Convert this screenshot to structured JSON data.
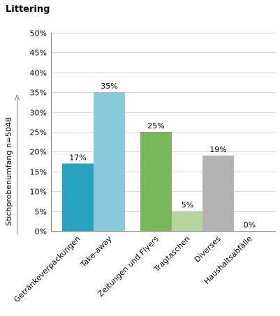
{
  "chart_data": {
    "type": "bar",
    "title": "Littering",
    "xlabel": "",
    "ylabel": "Stichprobenumfang n=5048",
    "ylim": [
      0,
      50
    ],
    "yticks": [
      "0%",
      "5%",
      "10%",
      "15%",
      "20%",
      "25%",
      "30%",
      "35%",
      "40%",
      "45%",
      "50%"
    ],
    "grid": true,
    "categories": [
      "Getränkeverpackungen",
      "Take-away",
      "Zeitungen und Flyers",
      "Tragtaschen",
      "Diverses",
      "Haushaltsabfälle"
    ],
    "values": [
      17,
      35,
      25,
      5,
      19,
      0
    ],
    "value_labels": [
      "17%",
      "35%",
      "25%",
      "5%",
      "19%",
      "0%"
    ],
    "colors": [
      "#27a2bf",
      "#88c9dc",
      "#7ab75b",
      "#b6d59d",
      "#b3b3b3",
      "#b3b3b3"
    ]
  }
}
